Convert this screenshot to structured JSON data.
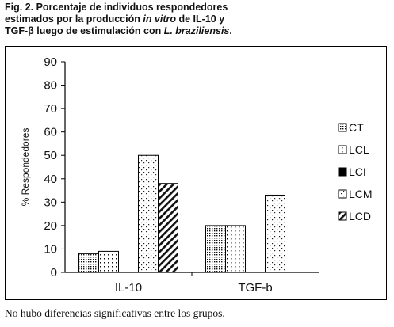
{
  "caption": {
    "line1": "Fig. 2. Porcentaje de individuos respondedores",
    "line2_prefix": "estimados por la producción ",
    "line2_italic": "in vitro",
    "line2_suffix": " de IL-10 y",
    "line3_prefix": "TGF-β luego de estimulación con ",
    "line3_italic": "L. braziliensis",
    "line3_suffix": "."
  },
  "footnote": "No hubo diferencias significativas entre los grupos.",
  "chart_data": {
    "type": "bar",
    "categories": [
      "IL-10",
      "TGF-b"
    ],
    "ylabel": "% Respondedores",
    "xlabel": "",
    "ylim": [
      0,
      90
    ],
    "yticks": [
      0,
      10,
      20,
      30,
      40,
      50,
      60,
      70,
      80,
      90
    ],
    "grid": false,
    "legend_position": "right",
    "series": [
      {
        "name": "CT",
        "values": [
          8,
          20
        ],
        "pattern": "dense-dots"
      },
      {
        "name": "LCL",
        "values": [
          9,
          20
        ],
        "pattern": "sparse-dots"
      },
      {
        "name": "LCI",
        "values": [
          0,
          0
        ],
        "pattern": "solid-black"
      },
      {
        "name": "LCM",
        "values": [
          50,
          33
        ],
        "pattern": "fine-dots"
      },
      {
        "name": "LCD",
        "values": [
          38,
          0
        ],
        "pattern": "diagonal-stripes"
      }
    ]
  }
}
